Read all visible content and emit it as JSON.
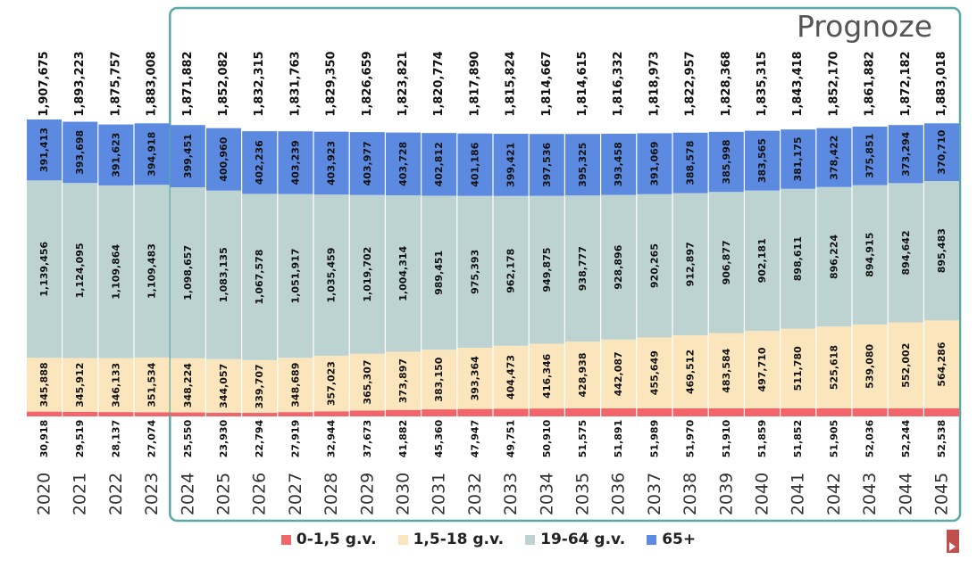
{
  "chart_data": {
    "type": "bar",
    "stacked": true,
    "forecast_label": "Prognoze",
    "forecast_start_category": "2024",
    "categories": [
      "2020",
      "2021",
      "2022",
      "2023",
      "2024",
      "2025",
      "2026",
      "2027",
      "2028",
      "2029",
      "2030",
      "2031",
      "2032",
      "2033",
      "2034",
      "2035",
      "2036",
      "2037",
      "2038",
      "2039",
      "2040",
      "2041",
      "2042",
      "2043",
      "2044",
      "2045"
    ],
    "totals": [
      "1,907,675",
      "1,893,223",
      "1,875,757",
      "1,883,008",
      "1,871,882",
      "1,852,082",
      "1,832,315",
      "1,831,763",
      "1,829,350",
      "1,826,659",
      "1,823,821",
      "1,820,774",
      "1,817,890",
      "1,815,824",
      "1,814,667",
      "1,814,615",
      "1,816,332",
      "1,818,973",
      "1,822,957",
      "1,828,368",
      "1,835,315",
      "1,843,418",
      "1,852,170",
      "1,861,882",
      "1,872,182",
      "1,883,018"
    ],
    "series": [
      {
        "name": "0-1,5 g.v.",
        "color": "#f2666b",
        "values": [
          30918,
          29519,
          28137,
          27074,
          25550,
          23930,
          22794,
          27919,
          32944,
          37673,
          41882,
          45360,
          47947,
          49751,
          50910,
          51575,
          51891,
          51989,
          51970,
          51910,
          51859,
          51852,
          51905,
          52036,
          52244,
          52538
        ]
      },
      {
        "name": "1,5-18 g.v.",
        "color": "#fbe5bc",
        "values": [
          345888,
          345912,
          346133,
          351534,
          348224,
          344057,
          339707,
          348689,
          357023,
          365307,
          373897,
          383150,
          393364,
          404473,
          416346,
          428938,
          442087,
          455649,
          469512,
          483584,
          497710,
          511780,
          525618,
          539080,
          552002,
          564286
        ]
      },
      {
        "name": "19-64 g.v.",
        "color": "#bcd3d1",
        "values": [
          1139456,
          1124095,
          1109864,
          1109483,
          1098657,
          1083135,
          1067578,
          1051917,
          1035459,
          1019702,
          1004314,
          989451,
          975393,
          962178,
          949875,
          938777,
          928896,
          920265,
          912897,
          906877,
          902181,
          898611,
          896224,
          894915,
          894642,
          895483
        ]
      },
      {
        "name": "65+",
        "color": "#5b8ae0",
        "values": [
          391413,
          393698,
          391623,
          394918,
          399451,
          400960,
          402236,
          403239,
          403923,
          403977,
          403728,
          402812,
          401186,
          399421,
          397536,
          395325,
          393458,
          391069,
          388578,
          385998,
          383565,
          381175,
          378422,
          375851,
          373294,
          370710
        ]
      }
    ],
    "colors": {
      "forecast_frame": "#5aa8a8",
      "label_text": "#111111",
      "year_text": "#333333"
    }
  }
}
